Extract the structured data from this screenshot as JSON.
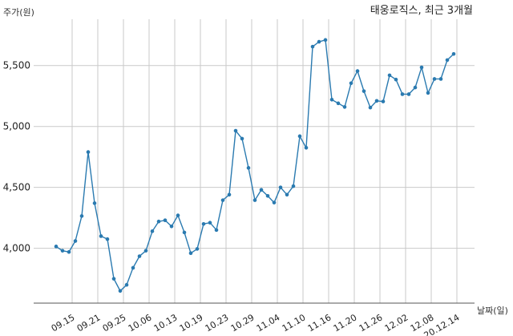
{
  "chart_data": {
    "type": "line",
    "title": "태웅로직스, 최근 3개월",
    "ylabel": "주가(원)",
    "xlabel": "날짜(일)",
    "ylim": [
      3550,
      5880
    ],
    "yticks": [
      4000,
      4500,
      5000,
      5500
    ],
    "ytick_labels": [
      "4,000",
      "4,500",
      "5,000",
      "5,500"
    ],
    "xtick_labels": [
      "09.15",
      "09.21",
      "09.25",
      "10.06",
      "10.13",
      "10.19",
      "10.23",
      "10.29",
      "11.04",
      "11.10",
      "11.16",
      "11.20",
      "11.26",
      "12.02",
      "12.08",
      "20.12.14"
    ],
    "xtick_index": [
      2.5,
      6.5,
      10.5,
      14.5,
      18.5,
      22.5,
      26.5,
      30.5,
      34.5,
      38.5,
      42.5,
      46.5,
      50.5,
      54.5,
      58.5,
      62.5
    ],
    "grid": true,
    "color": "#2a7ab0",
    "series": [
      {
        "values": [
          4015,
          3980,
          3970,
          4060,
          4265,
          4790,
          4370,
          4100,
          4075,
          3750,
          3650,
          3700,
          3840,
          3935,
          3980,
          4140,
          4220,
          4230,
          4180,
          4270,
          4130,
          3960,
          3995,
          4200,
          4210,
          4150,
          4395,
          4440,
          4965,
          4900,
          4660,
          4395,
          4480,
          4430,
          4375,
          4500,
          4440,
          4510,
          4920,
          4825,
          5655,
          5695,
          5710,
          5220,
          5190,
          5160,
          5355,
          5455,
          5290,
          5155,
          5210,
          5205,
          5420,
          5385,
          5265,
          5265,
          5320,
          5485,
          5275,
          5390,
          5390,
          5545,
          5595
        ]
      }
    ]
  }
}
